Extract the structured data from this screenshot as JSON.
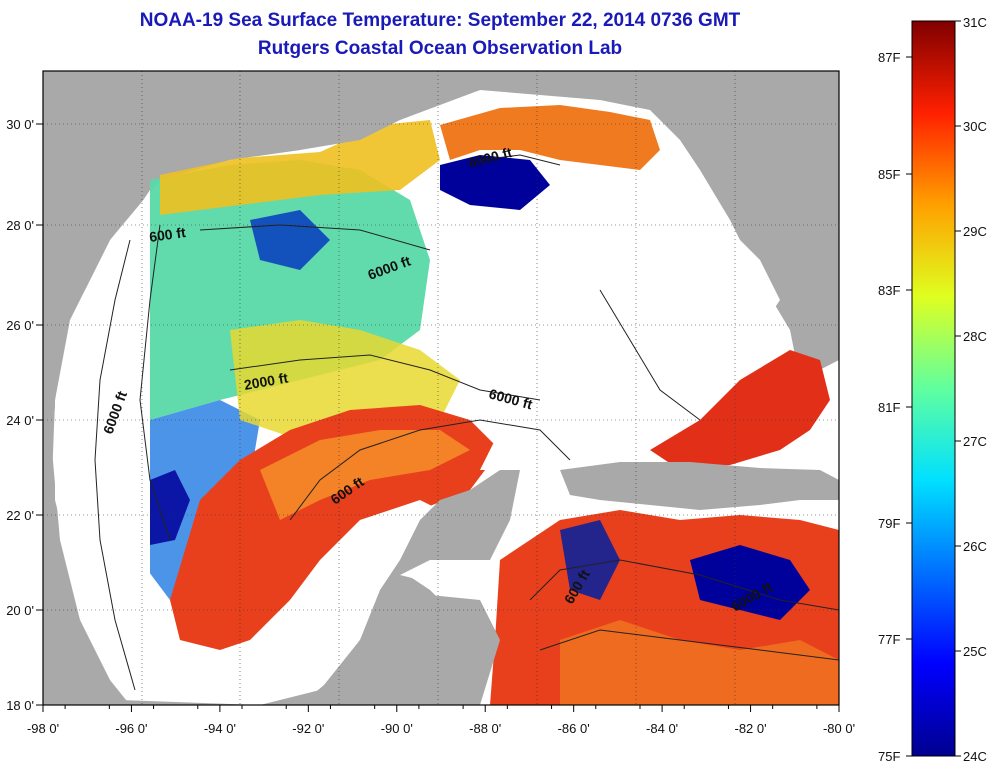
{
  "header": {
    "title": "NOAA-19 Sea Surface Temperature:  September 22, 2014 0736 GMT",
    "subtitle": "Rutgers Coastal Ocean Observation Lab"
  },
  "axes": {
    "longitude_ticks": [
      "-98 0'",
      "-96 0'",
      "-94 0'",
      "-92 0'",
      "-90 0'",
      "-88 0'",
      "-86 0'",
      "-84 0'",
      "-82 0'",
      "-80 0'"
    ],
    "latitude_ticks": [
      "30 0'",
      "28 0'",
      "26 0'",
      "24 0'",
      "22 0'",
      "20 0'",
      "18 0'"
    ]
  },
  "contour_labels": {
    "c1": "600 ft",
    "c2": "6000 ft",
    "c3": "2000 ft",
    "c4": "6000 ft",
    "c5": "600 ft",
    "c6": "6000 ft",
    "c7": "6000 ft",
    "c8": "600 ft",
    "c9": "6000 ft"
  },
  "colorbar": {
    "celsius_labels": [
      "31C",
      "30C",
      "29C",
      "28C",
      "27C",
      "26C",
      "25C",
      "24C"
    ],
    "fahrenheit_labels": [
      "87F",
      "85F",
      "83F",
      "81F",
      "79F",
      "77F",
      "75F"
    ]
  },
  "colors": {
    "land": "#a9a9a9",
    "cloud": "#ffffff",
    "title": "#1a1ab8",
    "warm": "#e8401c",
    "cold": "#00009a"
  }
}
